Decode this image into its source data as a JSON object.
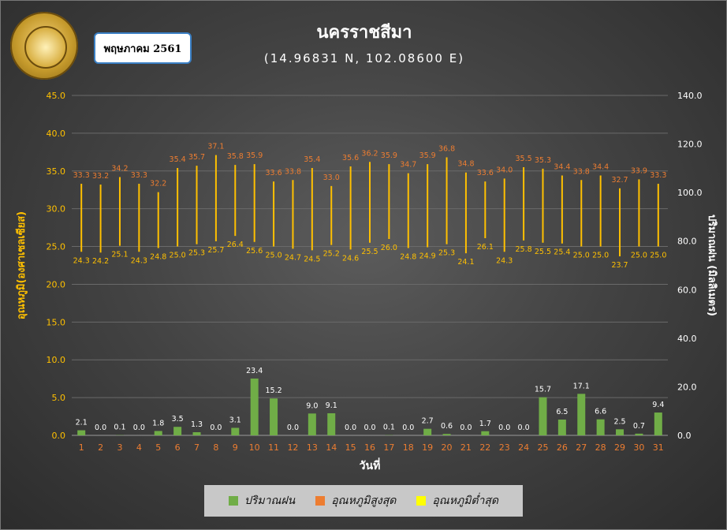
{
  "header": {
    "title": "นครราชสีมา",
    "subtitle": "(14.96831 N, 102.08600 E)",
    "month_label": "พฤษภาคม 2561"
  },
  "colors": {
    "rain": "#70ad47",
    "tmax": "#ed7d31",
    "tmin": "#ffc000",
    "tmin_legend": "#ffff00",
    "axis_left": "#ffc000",
    "axis_x": "#ed7d31",
    "grid": "#6a6a6a"
  },
  "chart_data": {
    "type": "bar",
    "title": "นครราชสีมา",
    "xlabel": "วันที่",
    "ylabel_left": "อุณหภูมิ(องศาเซลเซียส)",
    "ylabel_right": "ปริมาณฝน (มิลลิเมตร)",
    "ylim_left": [
      0,
      45
    ],
    "ylim_right": [
      0,
      140
    ],
    "yticks_left": [
      "0.0",
      "5.0",
      "10.0",
      "15.0",
      "20.0",
      "25.0",
      "30.0",
      "35.0",
      "40.0",
      "45.0"
    ],
    "yticks_right": [
      "0.0",
      "20.0",
      "40.0",
      "60.0",
      "80.0",
      "100.0",
      "120.0",
      "140.0"
    ],
    "grid": true,
    "legend_position": "bottom",
    "categories": [
      "1",
      "2",
      "3",
      "4",
      "5",
      "6",
      "7",
      "8",
      "9",
      "10",
      "11",
      "12",
      "13",
      "14",
      "15",
      "16",
      "17",
      "18",
      "19",
      "20",
      "21",
      "22",
      "23",
      "24",
      "25",
      "26",
      "27",
      "28",
      "29",
      "30",
      "31"
    ],
    "series": [
      {
        "name": "ปริมาณฝน",
        "type": "bar",
        "axis": "right",
        "values": [
          2.1,
          0.0,
          0.1,
          0.0,
          1.8,
          3.5,
          1.3,
          0.0,
          3.1,
          23.4,
          15.2,
          0.0,
          9.0,
          9.1,
          0.0,
          0.0,
          0.1,
          0.0,
          2.7,
          0.6,
          0.0,
          1.7,
          0.0,
          0.0,
          15.7,
          6.5,
          17.1,
          6.6,
          2.5,
          0.7,
          9.4
        ]
      },
      {
        "name": "อุณหภูมิสูงสุด",
        "type": "hi-lo",
        "axis": "left",
        "values": [
          33.3,
          33.2,
          34.2,
          33.3,
          32.2,
          35.4,
          35.7,
          37.1,
          35.8,
          35.9,
          33.6,
          33.8,
          35.4,
          33.0,
          35.6,
          36.2,
          35.9,
          34.7,
          35.9,
          36.8,
          34.8,
          33.6,
          34.0,
          35.5,
          35.3,
          34.4,
          33.8,
          34.4,
          32.7,
          33.9,
          33.3
        ]
      },
      {
        "name": "อุณหภูมิต่ำสุด",
        "type": "hi-lo",
        "axis": "left",
        "values": [
          24.3,
          24.2,
          25.1,
          24.3,
          24.8,
          25.0,
          25.3,
          25.7,
          26.4,
          25.6,
          25.0,
          24.7,
          24.5,
          25.2,
          24.6,
          25.5,
          26.0,
          24.8,
          24.9,
          25.3,
          24.1,
          26.1,
          24.3,
          25.8,
          25.5,
          25.4,
          25.0,
          25.0,
          23.7,
          25.0,
          25.0
        ]
      }
    ]
  },
  "legend": {
    "rain": "ปริมาณฝน",
    "tmax": "อุณหภูมิสูงสุด",
    "tmin": "อุณหภูมิต่ำสุด"
  }
}
